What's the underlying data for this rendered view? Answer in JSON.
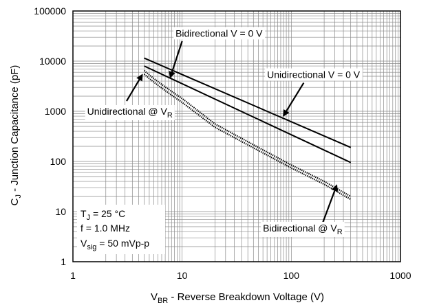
{
  "chart_data": {
    "type": "line",
    "x_scale": "log",
    "y_scale": "log",
    "xlim": [
      1,
      1000
    ],
    "ylim": [
      1,
      100000
    ],
    "grid": true,
    "legend": "none",
    "x_ticks": [
      "1",
      "10",
      "100",
      "1000"
    ],
    "y_ticks": [
      "1",
      "10",
      "100",
      "1000",
      "10000",
      "100000"
    ],
    "xlabel": {
      "prefix": "V",
      "sub": "BR",
      "suffix": " - Reverse Breakdown Voltage (V)"
    },
    "ylabel": {
      "prefix": "C",
      "sub": "J",
      "suffix": " - Junction Capacitance (pF)"
    },
    "conditions": {
      "line1": {
        "prefix": "T",
        "sub": "J",
        "suffix": " = 25 °C"
      },
      "line2": {
        "text": "f = 1.0 MHz"
      },
      "line3": {
        "prefix": "V",
        "sub": "sig",
        "suffix": " = 50 mVp-p"
      }
    },
    "series": [
      {
        "style": "solid",
        "x": [
          4.5,
          350
        ],
        "y": [
          11500,
          190
        ]
      },
      {
        "style": "solid",
        "x": [
          4.5,
          350
        ],
        "y": [
          8000,
          95
        ]
      },
      {
        "style": "dotted",
        "x": [
          4.5,
          5,
          6,
          8,
          10,
          20,
          50,
          100,
          200,
          350
        ],
        "y": [
          6500,
          5300,
          3900,
          2500,
          1800,
          560,
          190,
          85,
          40,
          20
        ]
      },
      {
        "style": "dotted",
        "x": [
          4.5,
          5,
          6,
          8,
          10,
          20,
          50,
          100,
          200,
          350
        ],
        "y": [
          5500,
          4500,
          3300,
          2100,
          1500,
          480,
          165,
          74,
          35,
          17.5
        ]
      }
    ],
    "annotations": [
      {
        "text": "Bidirectional V = 0 V",
        "label_x": 8.7,
        "label_y": 36000,
        "arrow_from": [
          10,
          25000
        ],
        "arrow_to": [
          7.8,
          4800
        ]
      },
      {
        "text": "Unidirectional V = 0 V",
        "label_x": 60,
        "label_y": 5400,
        "arrow_from": [
          130,
          3700
        ],
        "arrow_to": [
          85,
          820
        ]
      },
      {
        "prefix": "Unidirectional @ V",
        "sub": "R",
        "label_x": 1.35,
        "label_y": 1000,
        "arrow_from": [
          3.1,
          1600
        ],
        "arrow_to": [
          4.3,
          5300
        ]
      },
      {
        "prefix": "Bidirectional @ V",
        "sub": "R",
        "label_x": 55,
        "label_y": 4.7,
        "arrow_from": [
          190,
          5.3
        ],
        "arrow_to": [
          260,
          33
        ]
      }
    ]
  }
}
